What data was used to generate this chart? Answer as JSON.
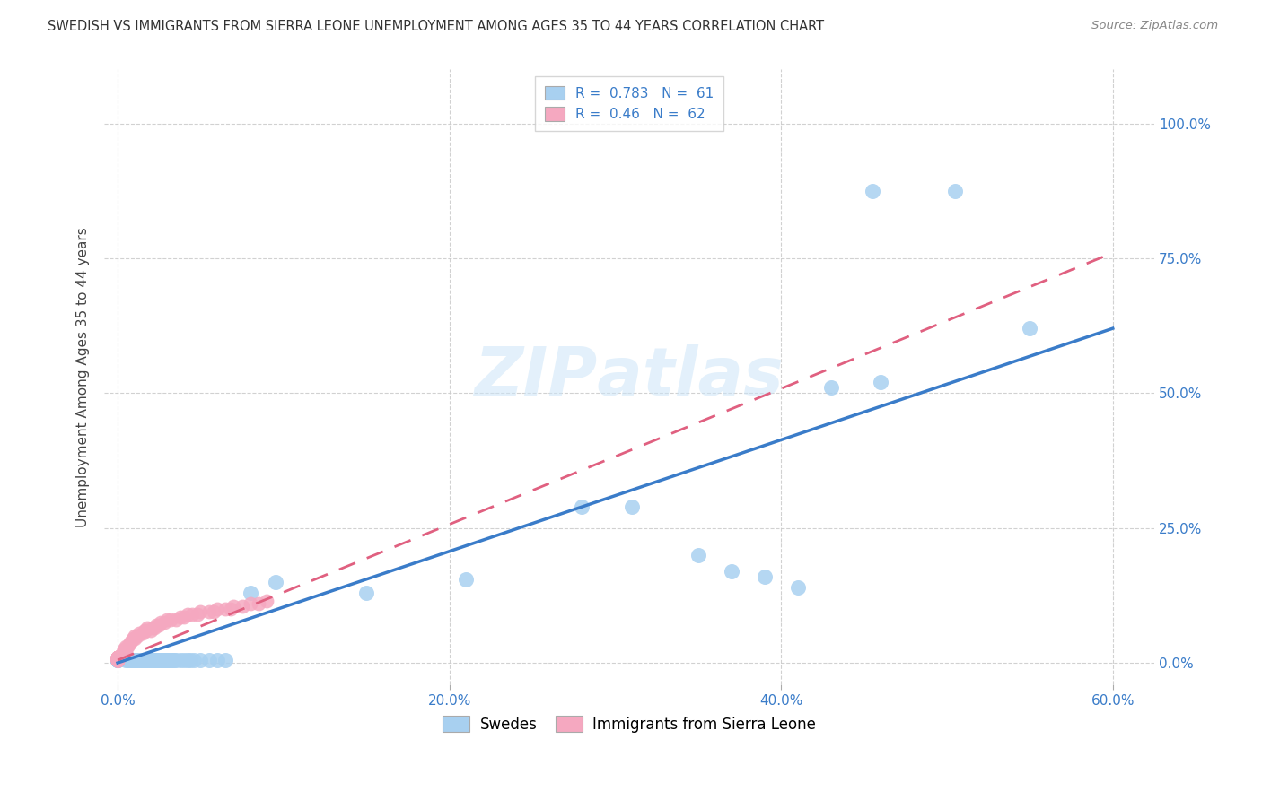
{
  "title": "SWEDISH VS IMMIGRANTS FROM SIERRA LEONE UNEMPLOYMENT AMONG AGES 35 TO 44 YEARS CORRELATION CHART",
  "source": "Source: ZipAtlas.com",
  "ylabel": "Unemployment Among Ages 35 to 44 years",
  "legend_label1": "Swedes",
  "legend_label2": "Immigrants from Sierra Leone",
  "R1": 0.783,
  "N1": 61,
  "R2": 0.46,
  "N2": 62,
  "color_swedes": "#a8d0f0",
  "color_sierra": "#f5a8c0",
  "color_trendline1": "#3a7cc9",
  "color_trendline2": "#e06080",
  "swedes_x": [
    0.0,
    0.0,
    0.0,
    0.0,
    0.0,
    0.005,
    0.006,
    0.007,
    0.008,
    0.009,
    0.01,
    0.01,
    0.011,
    0.012,
    0.013,
    0.014,
    0.015,
    0.016,
    0.017,
    0.018,
    0.019,
    0.02,
    0.021,
    0.022,
    0.023,
    0.024,
    0.025,
    0.026,
    0.027,
    0.028,
    0.029,
    0.03,
    0.031,
    0.032,
    0.033,
    0.034,
    0.035,
    0.038,
    0.04,
    0.042,
    0.044,
    0.046,
    0.05,
    0.055,
    0.06,
    0.065,
    0.08,
    0.095,
    0.15,
    0.21,
    0.28,
    0.31,
    0.35,
    0.37,
    0.39,
    0.41,
    0.43,
    0.46,
    0.455,
    0.505,
    0.55
  ],
  "swedes_y": [
    0.005,
    0.005,
    0.005,
    0.005,
    0.005,
    0.005,
    0.005,
    0.005,
    0.005,
    0.005,
    0.005,
    0.005,
    0.005,
    0.005,
    0.005,
    0.005,
    0.005,
    0.005,
    0.005,
    0.005,
    0.005,
    0.005,
    0.005,
    0.005,
    0.005,
    0.005,
    0.005,
    0.005,
    0.005,
    0.005,
    0.005,
    0.005,
    0.005,
    0.005,
    0.005,
    0.005,
    0.005,
    0.005,
    0.005,
    0.005,
    0.005,
    0.005,
    0.005,
    0.005,
    0.005,
    0.005,
    0.13,
    0.15,
    0.13,
    0.155,
    0.29,
    0.29,
    0.2,
    0.17,
    0.16,
    0.14,
    0.51,
    0.52,
    0.875,
    0.875,
    0.62
  ],
  "sierra_x": [
    0.0,
    0.0,
    0.0,
    0.0,
    0.0,
    0.0,
    0.0,
    0.0,
    0.0,
    0.0,
    0.0,
    0.0,
    0.0,
    0.0,
    0.0,
    0.0,
    0.0,
    0.0,
    0.0,
    0.0,
    0.003,
    0.004,
    0.005,
    0.005,
    0.006,
    0.007,
    0.008,
    0.009,
    0.01,
    0.01,
    0.012,
    0.013,
    0.015,
    0.016,
    0.017,
    0.018,
    0.02,
    0.021,
    0.022,
    0.023,
    0.025,
    0.026,
    0.028,
    0.03,
    0.032,
    0.035,
    0.038,
    0.04,
    0.042,
    0.045,
    0.048,
    0.05,
    0.055,
    0.058,
    0.06,
    0.065,
    0.068,
    0.07,
    0.075,
    0.08,
    0.085,
    0.09
  ],
  "sierra_y": [
    0.005,
    0.005,
    0.005,
    0.005,
    0.005,
    0.005,
    0.005,
    0.005,
    0.005,
    0.005,
    0.01,
    0.01,
    0.01,
    0.01,
    0.01,
    0.01,
    0.01,
    0.01,
    0.01,
    0.01,
    0.02,
    0.025,
    0.025,
    0.03,
    0.03,
    0.035,
    0.04,
    0.045,
    0.045,
    0.05,
    0.05,
    0.055,
    0.055,
    0.06,
    0.06,
    0.065,
    0.06,
    0.065,
    0.065,
    0.07,
    0.07,
    0.075,
    0.075,
    0.08,
    0.08,
    0.08,
    0.085,
    0.085,
    0.09,
    0.09,
    0.09,
    0.095,
    0.095,
    0.095,
    0.1,
    0.1,
    0.1,
    0.105,
    0.105,
    0.11,
    0.11,
    0.115
  ],
  "xlim": [
    -0.008,
    0.625
  ],
  "ylim": [
    -0.04,
    1.1
  ],
  "xticks": [
    0.0,
    0.2,
    0.4,
    0.6
  ],
  "xticklabels": [
    "0.0%",
    "20.0%",
    "40.0%",
    "60.0%"
  ],
  "yticks": [
    0.0,
    0.25,
    0.5,
    0.75,
    1.0
  ],
  "yticklabels": [
    "0.0%",
    "25.0%",
    "50.0%",
    "75.0%",
    "100.0%"
  ],
  "trendline1_x": [
    0.0,
    0.6
  ],
  "trendline1_y": [
    0.0,
    0.62
  ],
  "trendline2_x": [
    0.0,
    0.6
  ],
  "trendline2_y": [
    0.005,
    0.76
  ]
}
